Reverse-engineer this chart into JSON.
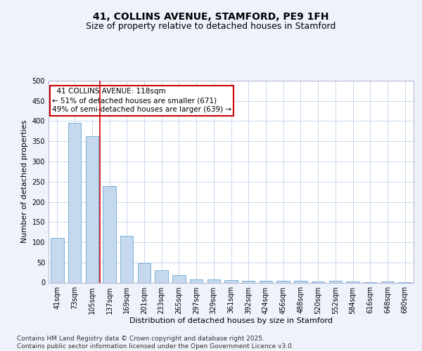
{
  "title": "41, COLLINS AVENUE, STAMFORD, PE9 1FH",
  "subtitle": "Size of property relative to detached houses in Stamford",
  "xlabel": "Distribution of detached houses by size in Stamford",
  "ylabel": "Number of detached properties",
  "categories": [
    "41sqm",
    "73sqm",
    "105sqm",
    "137sqm",
    "169sqm",
    "201sqm",
    "233sqm",
    "265sqm",
    "297sqm",
    "329sqm",
    "361sqm",
    "392sqm",
    "424sqm",
    "456sqm",
    "488sqm",
    "520sqm",
    "552sqm",
    "584sqm",
    "616sqm",
    "648sqm",
    "680sqm"
  ],
  "values": [
    110,
    395,
    362,
    240,
    115,
    48,
    30,
    18,
    8,
    8,
    6,
    5,
    4,
    5,
    5,
    3,
    4,
    2,
    1,
    2,
    1
  ],
  "bar_color": "#c5d8ee",
  "bar_edge_color": "#6aaad4",
  "bar_width": 0.75,
  "vline_x": 2.45,
  "vline_color": "#cc0000",
  "annotation_text": "  41 COLLINS AVENUE: 118sqm  \n← 51% of detached houses are smaller (671)\n49% of semi-detached houses are larger (639) →",
  "annotation_box_color": "#cc0000",
  "ylim": [
    0,
    500
  ],
  "yticks": [
    0,
    50,
    100,
    150,
    200,
    250,
    300,
    350,
    400,
    450,
    500
  ],
  "background_color": "#eef2fb",
  "plot_background": "#ffffff",
  "grid_color": "#c8d8ee",
  "footer": "Contains HM Land Registry data © Crown copyright and database right 2025.\nContains public sector information licensed under the Open Government Licence v3.0.",
  "title_fontsize": 10,
  "subtitle_fontsize": 9,
  "axis_label_fontsize": 8,
  "tick_fontsize": 7,
  "annotation_fontsize": 7.5,
  "footer_fontsize": 6.5
}
